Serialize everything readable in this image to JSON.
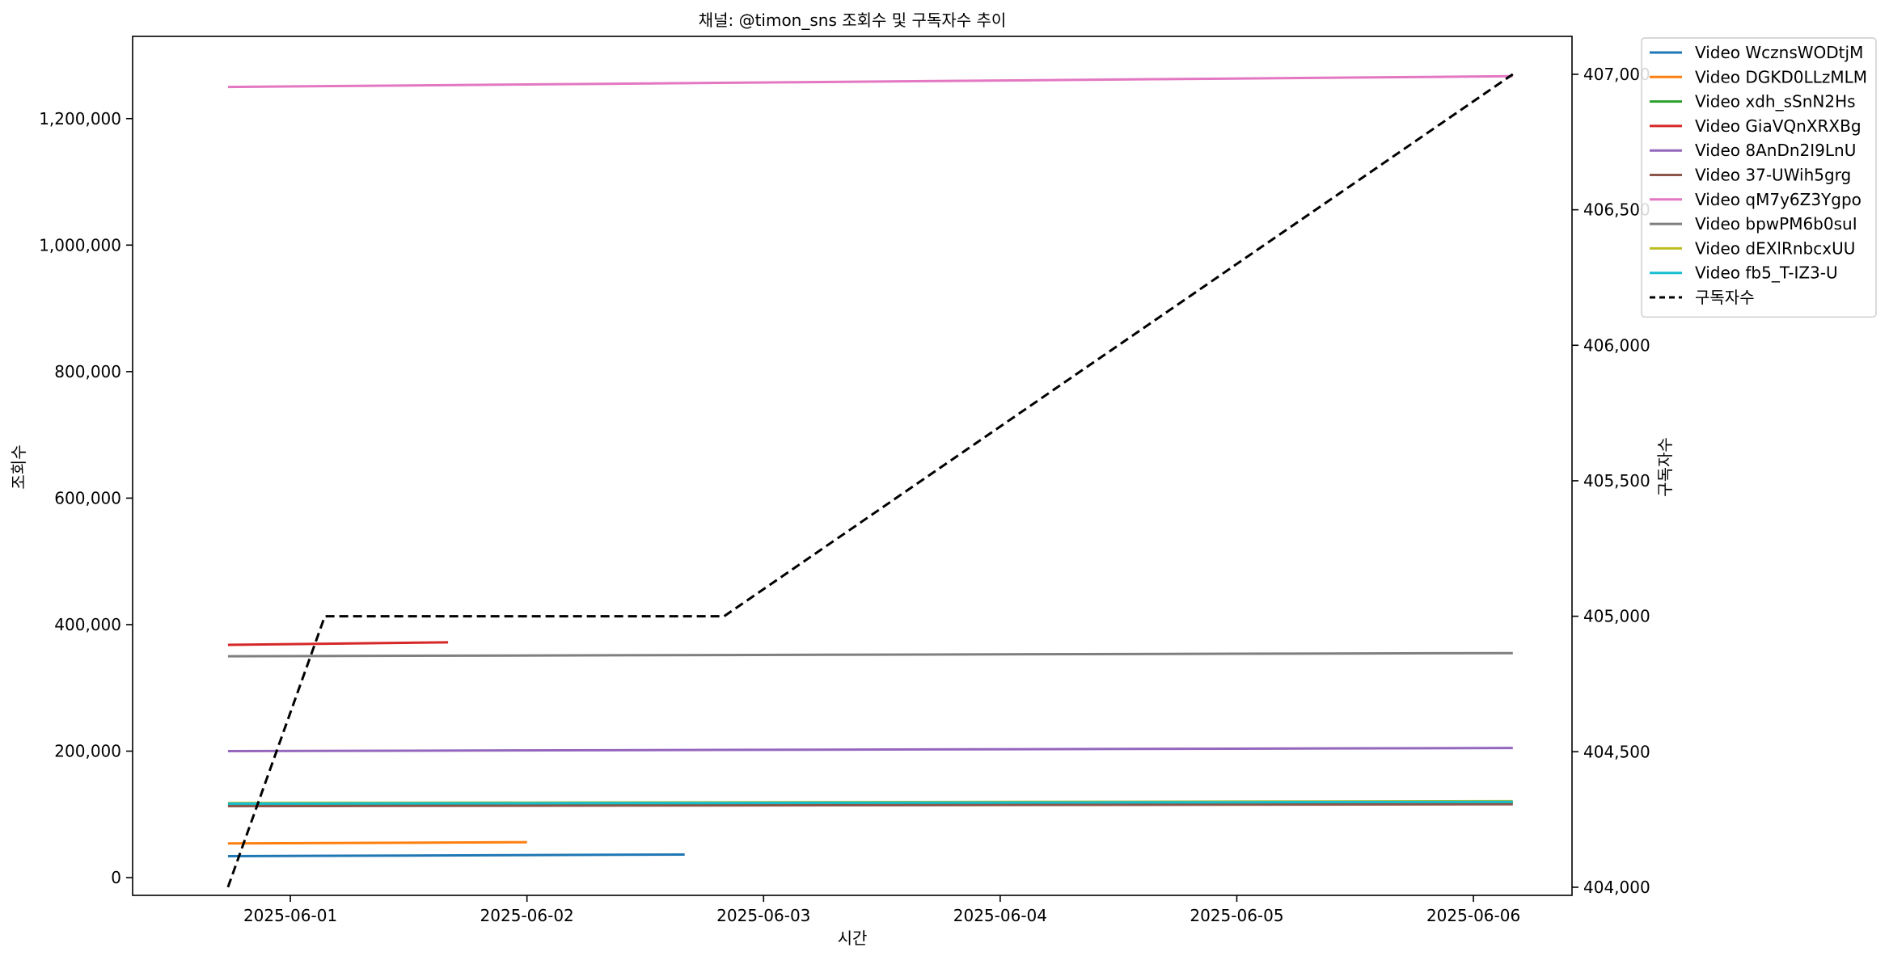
{
  "chart_data": {
    "type": "line",
    "title": "채널: @timon_sns 조회수 및 구독자수 추이",
    "xlabel": "시간",
    "ylabel": "조회수",
    "y2label": "구독자수",
    "xlim": [
      "2025-05-31T08:00",
      "2025-06-06T10:00"
    ],
    "ylim": [
      -28000,
      1330000
    ],
    "y2lim": [
      403970,
      407140
    ],
    "x_ticks": [
      "2025-06-01",
      "2025-06-02",
      "2025-06-03",
      "2025-06-04",
      "2025-06-05",
      "2025-06-06"
    ],
    "y_ticks": [
      0,
      200000,
      400000,
      600000,
      800000,
      1000000,
      1200000
    ],
    "y_tick_labels": [
      "0",
      "200,000",
      "400,000",
      "600,000",
      "800,000",
      "1,000,000",
      "1,200,000"
    ],
    "y2_ticks": [
      404000,
      404500,
      405000,
      405500,
      406000,
      406500,
      407000
    ],
    "y2_tick_labels": [
      "404,000",
      "404,500",
      "405,000",
      "405,500",
      "406,000",
      "406,500",
      "407,000"
    ],
    "grid": false,
    "legend_position": "outside top-right",
    "series": [
      {
        "name": "Video WcznsWODtjM",
        "color": "#1f77b4",
        "axis": "left",
        "x": [
          "2025-05-31T17:40",
          "2025-06-02T16:00"
        ],
        "y": [
          34000,
          36500
        ]
      },
      {
        "name": "Video DGKD0LLzMLM",
        "color": "#ff7f0e",
        "axis": "left",
        "x": [
          "2025-05-31T17:40",
          "2025-06-02T00:00"
        ],
        "y": [
          54000,
          56000
        ]
      },
      {
        "name": "Video xdh_sSnN2Hs",
        "color": "#2ca02c",
        "axis": "left",
        "x": [
          "2025-05-31T17:40",
          "2025-06-06T04:00"
        ],
        "y": [
          115000,
          118000
        ]
      },
      {
        "name": "Video GiaVQnXRXBg",
        "color": "#d62728",
        "axis": "left",
        "x": [
          "2025-05-31T17:40",
          "2025-06-01T16:00"
        ],
        "y": [
          368000,
          372000
        ]
      },
      {
        "name": "Video 8AnDn2I9LnU",
        "color": "#9467bd",
        "axis": "left",
        "x": [
          "2025-05-31T17:40",
          "2025-06-06T04:00"
        ],
        "y": [
          200000,
          205000
        ]
      },
      {
        "name": "Video 37-UWih5grg",
        "color": "#8c564b",
        "axis": "left",
        "x": [
          "2025-05-31T17:40",
          "2025-06-06T04:00"
        ],
        "y": [
          113000,
          116000
        ]
      },
      {
        "name": "Video qM7y6Z3Ygpo",
        "color": "#e377c2",
        "axis": "left",
        "x": [
          "2025-05-31T17:40",
          "2025-06-06T04:00"
        ],
        "y": [
          1250000,
          1267000
        ]
      },
      {
        "name": "Video bpwPM6b0suI",
        "color": "#7f7f7f",
        "axis": "left",
        "x": [
          "2025-05-31T17:40",
          "2025-06-06T04:00"
        ],
        "y": [
          350000,
          355000
        ]
      },
      {
        "name": "Video dEXlRnbcxUU",
        "color": "#bcbd22",
        "axis": "left",
        "x": [
          "2025-05-31T17:40",
          "2025-06-06T04:00"
        ],
        "y": [
          118000,
          121000
        ]
      },
      {
        "name": "Video fb5_T-IZ3-U",
        "color": "#17becf",
        "axis": "left",
        "x": [
          "2025-05-31T17:40",
          "2025-06-06T04:00"
        ],
        "y": [
          117000,
          120000
        ]
      },
      {
        "name": "구독자수",
        "color": "#000000",
        "axis": "right",
        "dashed": true,
        "x": [
          "2025-05-31T17:40",
          "2025-06-01T03:30",
          "2025-06-02T20:00",
          "2025-06-06T04:00"
        ],
        "y": [
          404000,
          405000,
          405000,
          407000
        ]
      }
    ]
  }
}
